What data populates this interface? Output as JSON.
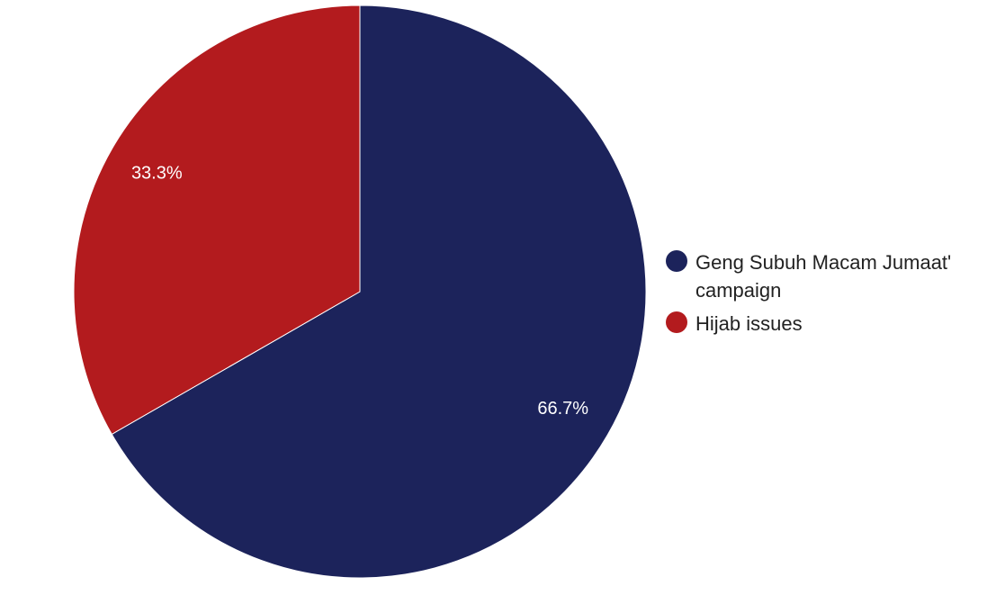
{
  "chart_data": {
    "type": "pie",
    "title": "",
    "legend_position": "right",
    "slices": [
      {
        "label": "Geng Subuh Macam Jumaat' campaign",
        "value": 66.7,
        "display": "66.7%",
        "color": "#1c235b"
      },
      {
        "label": "Hijab issues",
        "value": 33.3,
        "display": "33.3%",
        "color": "#b31b1e"
      }
    ]
  }
}
